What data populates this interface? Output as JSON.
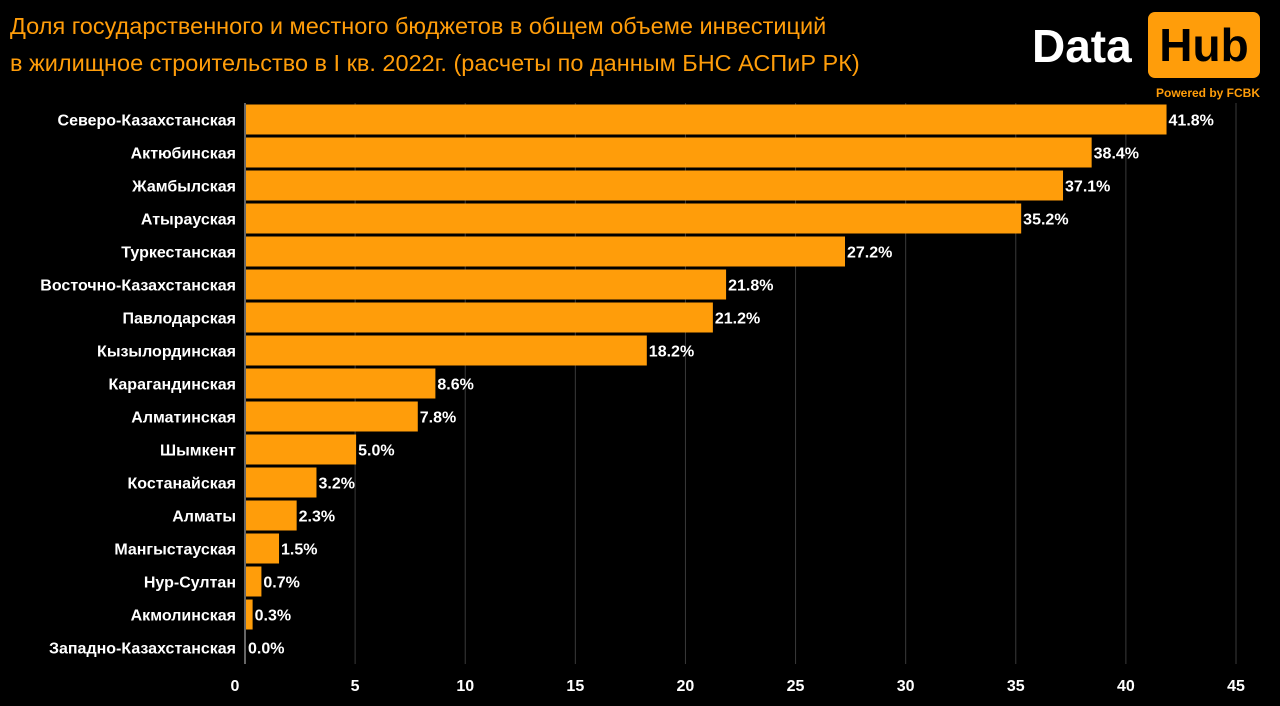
{
  "title_line1": "Доля государственного и местного бюджетов в общем объеме инвестиций",
  "title_line2": "в жилищное строительство в I кв. 2022г. (расчеты по данным БНС АСПиР РК)",
  "logo": {
    "data_text": "Data",
    "hub_text": "Hub",
    "powered_text": "Powered by FCBK"
  },
  "colors": {
    "background": "#000000",
    "bar": "#ff9d0a",
    "text": "#ffffff",
    "accent": "#ff9d0a"
  },
  "chart_data": {
    "type": "bar",
    "orientation": "horizontal",
    "categories": [
      "Северо-Казахстанская",
      "Актюбинская",
      "Жамбылская",
      "Атырауская",
      "Туркестанская",
      "Восточно-Казахстанская",
      "Павлодарская",
      "Кызылординская",
      "Карагандинская",
      "Алматинская",
      "Шымкент",
      "Костанайская",
      "Алматы",
      "Мангыстауская",
      "Нур-Султан",
      "Акмолинская",
      "Западно-Казахстанская"
    ],
    "values": [
      41.8,
      38.4,
      37.1,
      35.2,
      27.2,
      21.8,
      21.2,
      18.2,
      8.6,
      7.8,
      5.0,
      3.2,
      2.3,
      1.5,
      0.7,
      0.3,
      0.0
    ],
    "data_labels": [
      "41.8%",
      "38.4%",
      "37.1%",
      "35.2%",
      "27.2%",
      "21.8%",
      "21.2%",
      "18.2%",
      "8.6%",
      "7.8%",
      "5.0%",
      "3.2%",
      "2.3%",
      "1.5%",
      "0.7%",
      "0.3%",
      "0.0%"
    ],
    "xlim": [
      0,
      45
    ],
    "xticks": [
      "0",
      "5",
      "10",
      "15",
      "20",
      "25",
      "30",
      "35",
      "40",
      "45"
    ],
    "grid": true
  }
}
